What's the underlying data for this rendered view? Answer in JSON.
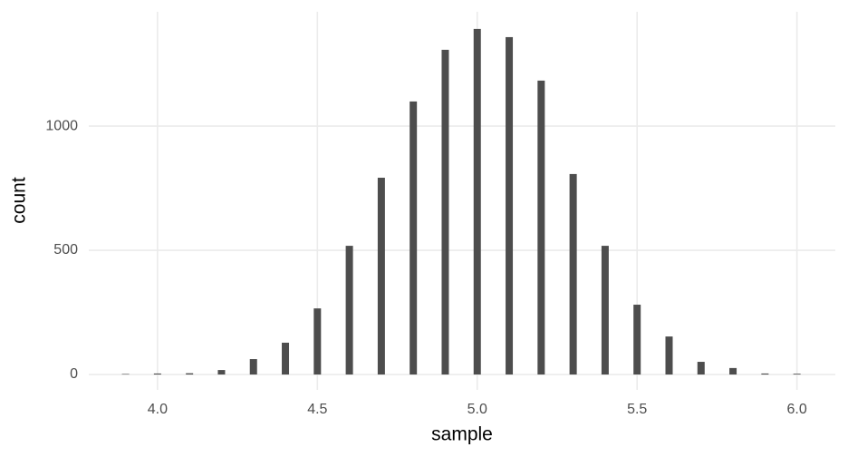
{
  "chart_data": {
    "type": "bar",
    "x": [
      3.9,
      4.0,
      4.1,
      4.2,
      4.3,
      4.4,
      4.5,
      4.6,
      4.7,
      4.8,
      4.9,
      5.0,
      5.1,
      5.2,
      5.3,
      5.4,
      5.5,
      5.6,
      5.7,
      5.8,
      5.9,
      6.0
    ],
    "values": [
      2,
      4,
      5,
      18,
      62,
      128,
      266,
      518,
      792,
      1099,
      1307,
      1391,
      1358,
      1183,
      807,
      518,
      281,
      153,
      51,
      26,
      4,
      3
    ],
    "color": "#4d4d4d",
    "x_label": "sample",
    "y_label": "count",
    "xlim": [
      3.785,
      6.12
    ],
    "xticks": [
      {
        "value": 4,
        "label": "4.0"
      },
      4.5,
      {
        "value": 5,
        "label": "5.0"
      },
      5.5,
      {
        "value": 6,
        "label": "6.0"
      }
    ],
    "ylim": [
      -62,
      1460
    ],
    "yticks": [
      0,
      500,
      1000
    ],
    "grid": true
  }
}
